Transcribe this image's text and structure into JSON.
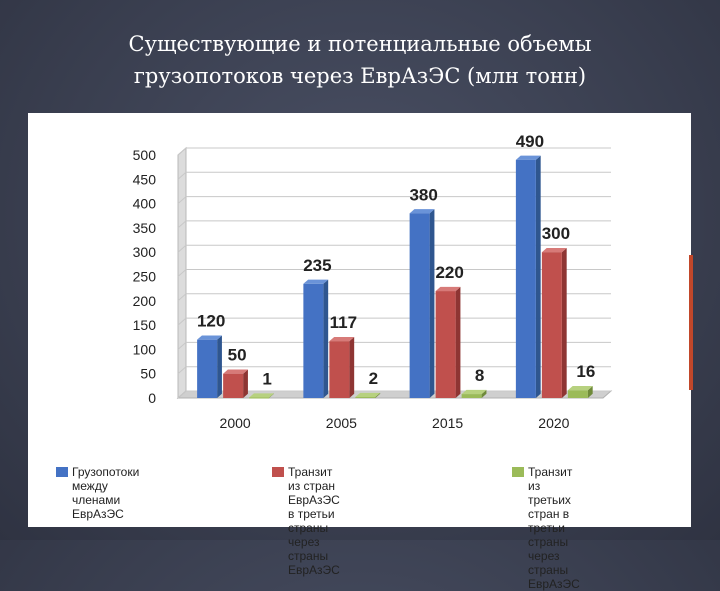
{
  "slide": {
    "title_line1": "Существующие и потенциальные объемы",
    "title_line2": "грузопотоков через ЕврАзЭС (млн тонн)"
  },
  "chart_data": {
    "type": "bar",
    "categories": [
      "2000",
      "2005",
      "2015",
      "2020"
    ],
    "series": [
      {
        "name": "Грузопотоки между членами ЕврАзЭС",
        "values": [
          120,
          235,
          380,
          490
        ],
        "color": "#4472c4",
        "top_color": "#6a93d8",
        "side_color": "#2f568f"
      },
      {
        "name": "Транзит из стран ЕврАзЭС в третьи страны через страны ЕврАзЭС",
        "values": [
          50,
          117,
          220,
          300
        ],
        "color": "#c0504d",
        "top_color": "#d77a78",
        "side_color": "#8e3533"
      },
      {
        "name": "Транзит из третьих стран в третьи страны через страны ЕврАзЭС",
        "values": [
          1,
          2,
          8,
          16
        ],
        "color": "#9bbb59",
        "top_color": "#b7d17f",
        "side_color": "#6f8a3a"
      }
    ],
    "yticks": [
      "0",
      "50",
      "100",
      "150",
      "200",
      "250",
      "300",
      "350",
      "400",
      "450",
      "500"
    ],
    "ylim": [
      0,
      500
    ],
    "grid": true,
    "legend_position": "bottom"
  },
  "legend": {
    "item1_line1": "Грузопотоки между",
    "item1_line2": "членами ЕврАзЭС",
    "item2_line1": "Транзит из стран",
    "item2_line2": "ЕврАзЭС в третьи",
    "item2_line3": "страны через страны",
    "item2_line4": "ЕврАзЭС",
    "item3_line1": "Транзит из третьих",
    "item3_line2": "стран в третьи страны",
    "item3_line3": "через страны ЕврАзЭС"
  }
}
